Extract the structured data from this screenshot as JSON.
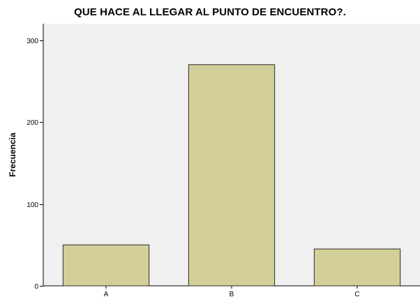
{
  "chart_data": {
    "type": "bar",
    "title": "QUE HACE AL LLEGAR AL PUNTO DE ENCUENTRO?.",
    "xlabel": "",
    "ylabel": "Frecuencia",
    "categories": [
      "A",
      "B",
      "C"
    ],
    "values": [
      50,
      270,
      45
    ],
    "ylim": [
      0,
      320
    ],
    "yticks": [
      0,
      100,
      200,
      300
    ],
    "grid": false,
    "colors": {
      "plot_background": "#f0f0f0",
      "bar_fill": "#d3cf98",
      "bar_stroke": "#2b2b2b",
      "axis": "#000000"
    }
  }
}
